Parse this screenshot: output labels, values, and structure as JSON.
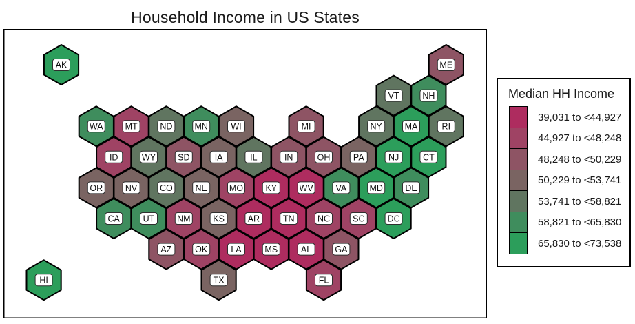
{
  "chart_data": {
    "type": "heatmap",
    "subtype": "us-states-hexbin-choropleth",
    "title": "Household Income in US States",
    "legend_title": "Median HH Income",
    "legend_position": "right",
    "classes": [
      {
        "label": "39,031 to <44,927",
        "color": "#ae2c5f"
      },
      {
        "label": "44,927 to <48,248",
        "color": "#9f4364"
      },
      {
        "label": "48,248 to <50,229",
        "color": "#8e5464"
      },
      {
        "label": "50,229 to <53,741",
        "color": "#7a6462"
      },
      {
        "label": "53,741 to <58,821",
        "color": "#607560"
      },
      {
        "label": "58,821 to <65,830",
        "color": "#3f8d5d"
      },
      {
        "label": "65,830 to <73,538",
        "color": "#2c9e5b"
      }
    ],
    "states": [
      {
        "abbr": "AK",
        "row": 0,
        "col": 0,
        "cls": 7
      },
      {
        "abbr": "ME",
        "row": 0,
        "col": 11,
        "cls": 3
      },
      {
        "abbr": "VT",
        "row": 1,
        "col": 9,
        "cls": 5
      },
      {
        "abbr": "NH",
        "row": 1,
        "col": 10,
        "cls": 6
      },
      {
        "abbr": "WA",
        "row": 2,
        "col": 1,
        "cls": 6
      },
      {
        "abbr": "MT",
        "row": 2,
        "col": 2,
        "cls": 2
      },
      {
        "abbr": "ND",
        "row": 2,
        "col": 3,
        "cls": 5
      },
      {
        "abbr": "MN",
        "row": 2,
        "col": 4,
        "cls": 6
      },
      {
        "abbr": "WI",
        "row": 2,
        "col": 5,
        "cls": 4
      },
      {
        "abbr": "MI",
        "row": 2,
        "col": 7,
        "cls": 3
      },
      {
        "abbr": "NY",
        "row": 2,
        "col": 9,
        "cls": 5
      },
      {
        "abbr": "MA",
        "row": 2,
        "col": 10,
        "cls": 7
      },
      {
        "abbr": "RI",
        "row": 2,
        "col": 11,
        "cls": 5
      },
      {
        "abbr": "ID",
        "row": 3,
        "col": 1,
        "cls": 2
      },
      {
        "abbr": "WY",
        "row": 3,
        "col": 2,
        "cls": 5
      },
      {
        "abbr": "SD",
        "row": 3,
        "col": 3,
        "cls": 3
      },
      {
        "abbr": "IA",
        "row": 3,
        "col": 4,
        "cls": 4
      },
      {
        "abbr": "IL",
        "row": 3,
        "col": 5,
        "cls": 5
      },
      {
        "abbr": "IN",
        "row": 3,
        "col": 6,
        "cls": 3
      },
      {
        "abbr": "OH",
        "row": 3,
        "col": 7,
        "cls": 3
      },
      {
        "abbr": "PA",
        "row": 3,
        "col": 8,
        "cls": 4
      },
      {
        "abbr": "NJ",
        "row": 3,
        "col": 9,
        "cls": 7
      },
      {
        "abbr": "CT",
        "row": 3,
        "col": 10,
        "cls": 7
      },
      {
        "abbr": "OR",
        "row": 4,
        "col": 1,
        "cls": 4
      },
      {
        "abbr": "NV",
        "row": 4,
        "col": 2,
        "cls": 4
      },
      {
        "abbr": "CO",
        "row": 4,
        "col": 3,
        "cls": 5
      },
      {
        "abbr": "NE",
        "row": 4,
        "col": 4,
        "cls": 4
      },
      {
        "abbr": "MO",
        "row": 4,
        "col": 5,
        "cls": 2
      },
      {
        "abbr": "KY",
        "row": 4,
        "col": 6,
        "cls": 1
      },
      {
        "abbr": "WV",
        "row": 4,
        "col": 7,
        "cls": 1
      },
      {
        "abbr": "VA",
        "row": 4,
        "col": 8,
        "cls": 6
      },
      {
        "abbr": "MD",
        "row": 4,
        "col": 9,
        "cls": 7
      },
      {
        "abbr": "DE",
        "row": 4,
        "col": 10,
        "cls": 6
      },
      {
        "abbr": "CA",
        "row": 5,
        "col": 1,
        "cls": 6
      },
      {
        "abbr": "UT",
        "row": 5,
        "col": 2,
        "cls": 6
      },
      {
        "abbr": "NM",
        "row": 5,
        "col": 3,
        "cls": 2
      },
      {
        "abbr": "KS",
        "row": 5,
        "col": 4,
        "cls": 4
      },
      {
        "abbr": "AR",
        "row": 5,
        "col": 5,
        "cls": 1
      },
      {
        "abbr": "TN",
        "row": 5,
        "col": 6,
        "cls": 1
      },
      {
        "abbr": "NC",
        "row": 5,
        "col": 7,
        "cls": 2
      },
      {
        "abbr": "SC",
        "row": 5,
        "col": 8,
        "cls": 2
      },
      {
        "abbr": "DC",
        "row": 5,
        "col": 9,
        "cls": 7
      },
      {
        "abbr": "AZ",
        "row": 6,
        "col": 3,
        "cls": 3
      },
      {
        "abbr": "OK",
        "row": 6,
        "col": 4,
        "cls": 2
      },
      {
        "abbr": "LA",
        "row": 6,
        "col": 5,
        "cls": 1
      },
      {
        "abbr": "MS",
        "row": 6,
        "col": 6,
        "cls": 1
      },
      {
        "abbr": "AL",
        "row": 6,
        "col": 7,
        "cls": 1
      },
      {
        "abbr": "GA",
        "row": 6,
        "col": 8,
        "cls": 3
      },
      {
        "abbr": "TX",
        "row": 7,
        "col": 4,
        "cls": 4
      },
      {
        "abbr": "FL",
        "row": 7,
        "col": 7,
        "cls": 2
      },
      {
        "abbr": "HI",
        "row": 7,
        "col": -1,
        "cls": 7
      }
    ]
  }
}
